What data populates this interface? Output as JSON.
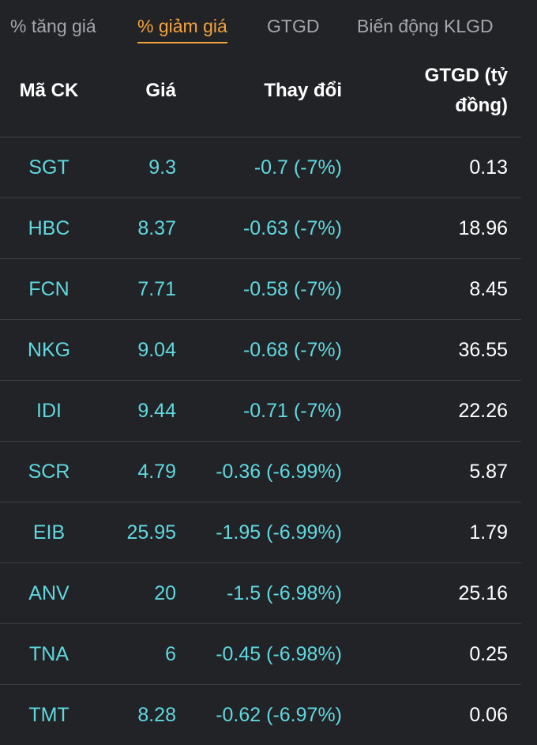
{
  "tabs": [
    {
      "label": "% tăng giá"
    },
    {
      "label": "% giảm giá",
      "active": true
    },
    {
      "label": "GTGD"
    },
    {
      "label": "Biến động KLGD"
    }
  ],
  "table": {
    "headers": {
      "code": "Mã CK",
      "price": "Giá",
      "change": "Thay đổi",
      "value_line1": "GTGD (tỷ",
      "value_line2": "đồng)"
    },
    "rows": [
      {
        "code": "SGT",
        "price": "9.3",
        "change": "-0.7 (-7%)",
        "value": "0.13"
      },
      {
        "code": "HBC",
        "price": "8.37",
        "change": "-0.63 (-7%)",
        "value": "18.96"
      },
      {
        "code": "FCN",
        "price": "7.71",
        "change": "-0.58 (-7%)",
        "value": "8.45"
      },
      {
        "code": "NKG",
        "price": "9.04",
        "change": "-0.68 (-7%)",
        "value": "36.55"
      },
      {
        "code": "IDI",
        "price": "9.44",
        "change": "-0.71 (-7%)",
        "value": "22.26"
      },
      {
        "code": "SCR",
        "price": "4.79",
        "change": "-0.36 (-6.99%)",
        "value": "5.87"
      },
      {
        "code": "EIB",
        "price": "25.95",
        "change": "-1.95 (-6.99%)",
        "value": "1.79"
      },
      {
        "code": "ANV",
        "price": "20",
        "change": "-1.5 (-6.98%)",
        "value": "25.16"
      },
      {
        "code": "TNA",
        "price": "6",
        "change": "-0.45 (-6.98%)",
        "value": "0.25"
      },
      {
        "code": "TMT",
        "price": "8.28",
        "change": "-0.62 (-6.97%)",
        "value": "0.06"
      }
    ]
  },
  "colors": {
    "background": "#222327",
    "active_tab": "#f5a33c",
    "inactive_tab": "#a3a6ad",
    "decrease_text": "#5fd8df",
    "divider": "#3d3f45"
  }
}
